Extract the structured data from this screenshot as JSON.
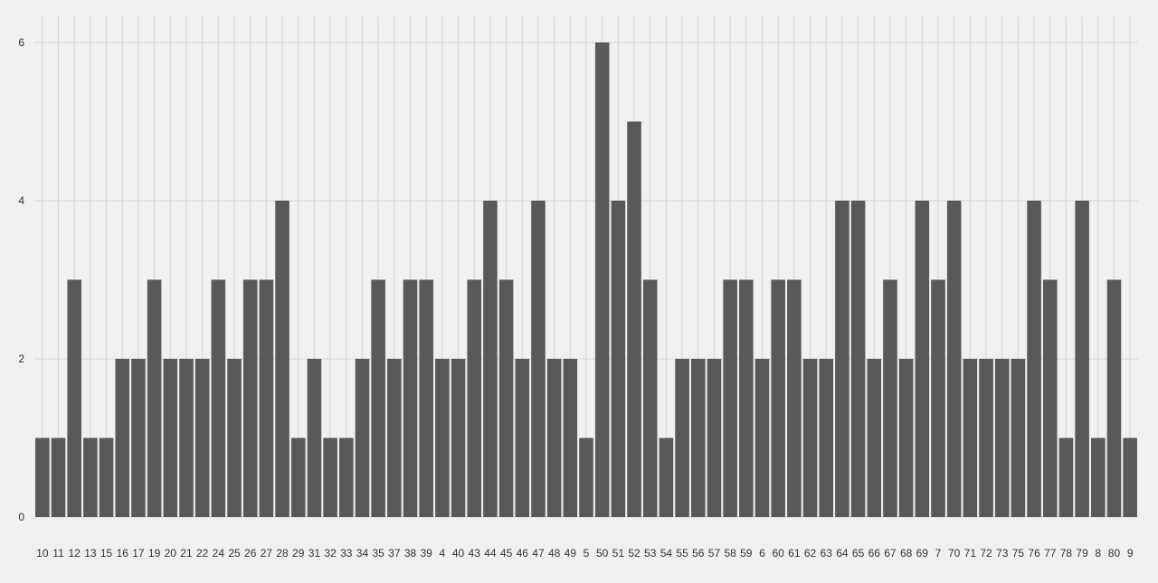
{
  "chart_data": {
    "type": "bar",
    "title": "",
    "xlabel": "",
    "ylabel": "",
    "ylim": [
      0,
      6
    ],
    "yticks": [
      0,
      2,
      4,
      6
    ],
    "grid": true,
    "colors": {
      "background": "#f0f0f0",
      "bar": "#595959",
      "grid": "#d4d4d4",
      "text": "#333333"
    },
    "categories": [
      "10",
      "11",
      "12",
      "13",
      "15",
      "16",
      "17",
      "19",
      "20",
      "21",
      "22",
      "24",
      "25",
      "26",
      "27",
      "28",
      "29",
      "31",
      "32",
      "33",
      "34",
      "35",
      "37",
      "38",
      "39",
      "4",
      "40",
      "43",
      "44",
      "45",
      "46",
      "47",
      "48",
      "49",
      "5",
      "50",
      "51",
      "52",
      "53",
      "54",
      "55",
      "56",
      "57",
      "58",
      "59",
      "6",
      "60",
      "61",
      "62",
      "63",
      "64",
      "65",
      "66",
      "67",
      "68",
      "69",
      "7",
      "70",
      "71",
      "72",
      "73",
      "75",
      "76",
      "77",
      "78",
      "79",
      "8",
      "80",
      "9"
    ],
    "values": [
      1,
      1,
      3,
      1,
      1,
      2,
      2,
      3,
      2,
      2,
      2,
      3,
      2,
      3,
      3,
      4,
      1,
      2,
      1,
      1,
      2,
      3,
      2,
      3,
      3,
      2,
      2,
      3,
      4,
      3,
      2,
      4,
      2,
      2,
      1,
      6,
      4,
      5,
      3,
      1,
      2,
      2,
      2,
      3,
      3,
      2,
      3,
      3,
      2,
      2,
      4,
      4,
      2,
      3,
      2,
      4,
      3,
      4,
      2,
      2,
      2,
      2,
      4,
      3,
      1,
      4,
      1,
      3,
      1
    ]
  }
}
